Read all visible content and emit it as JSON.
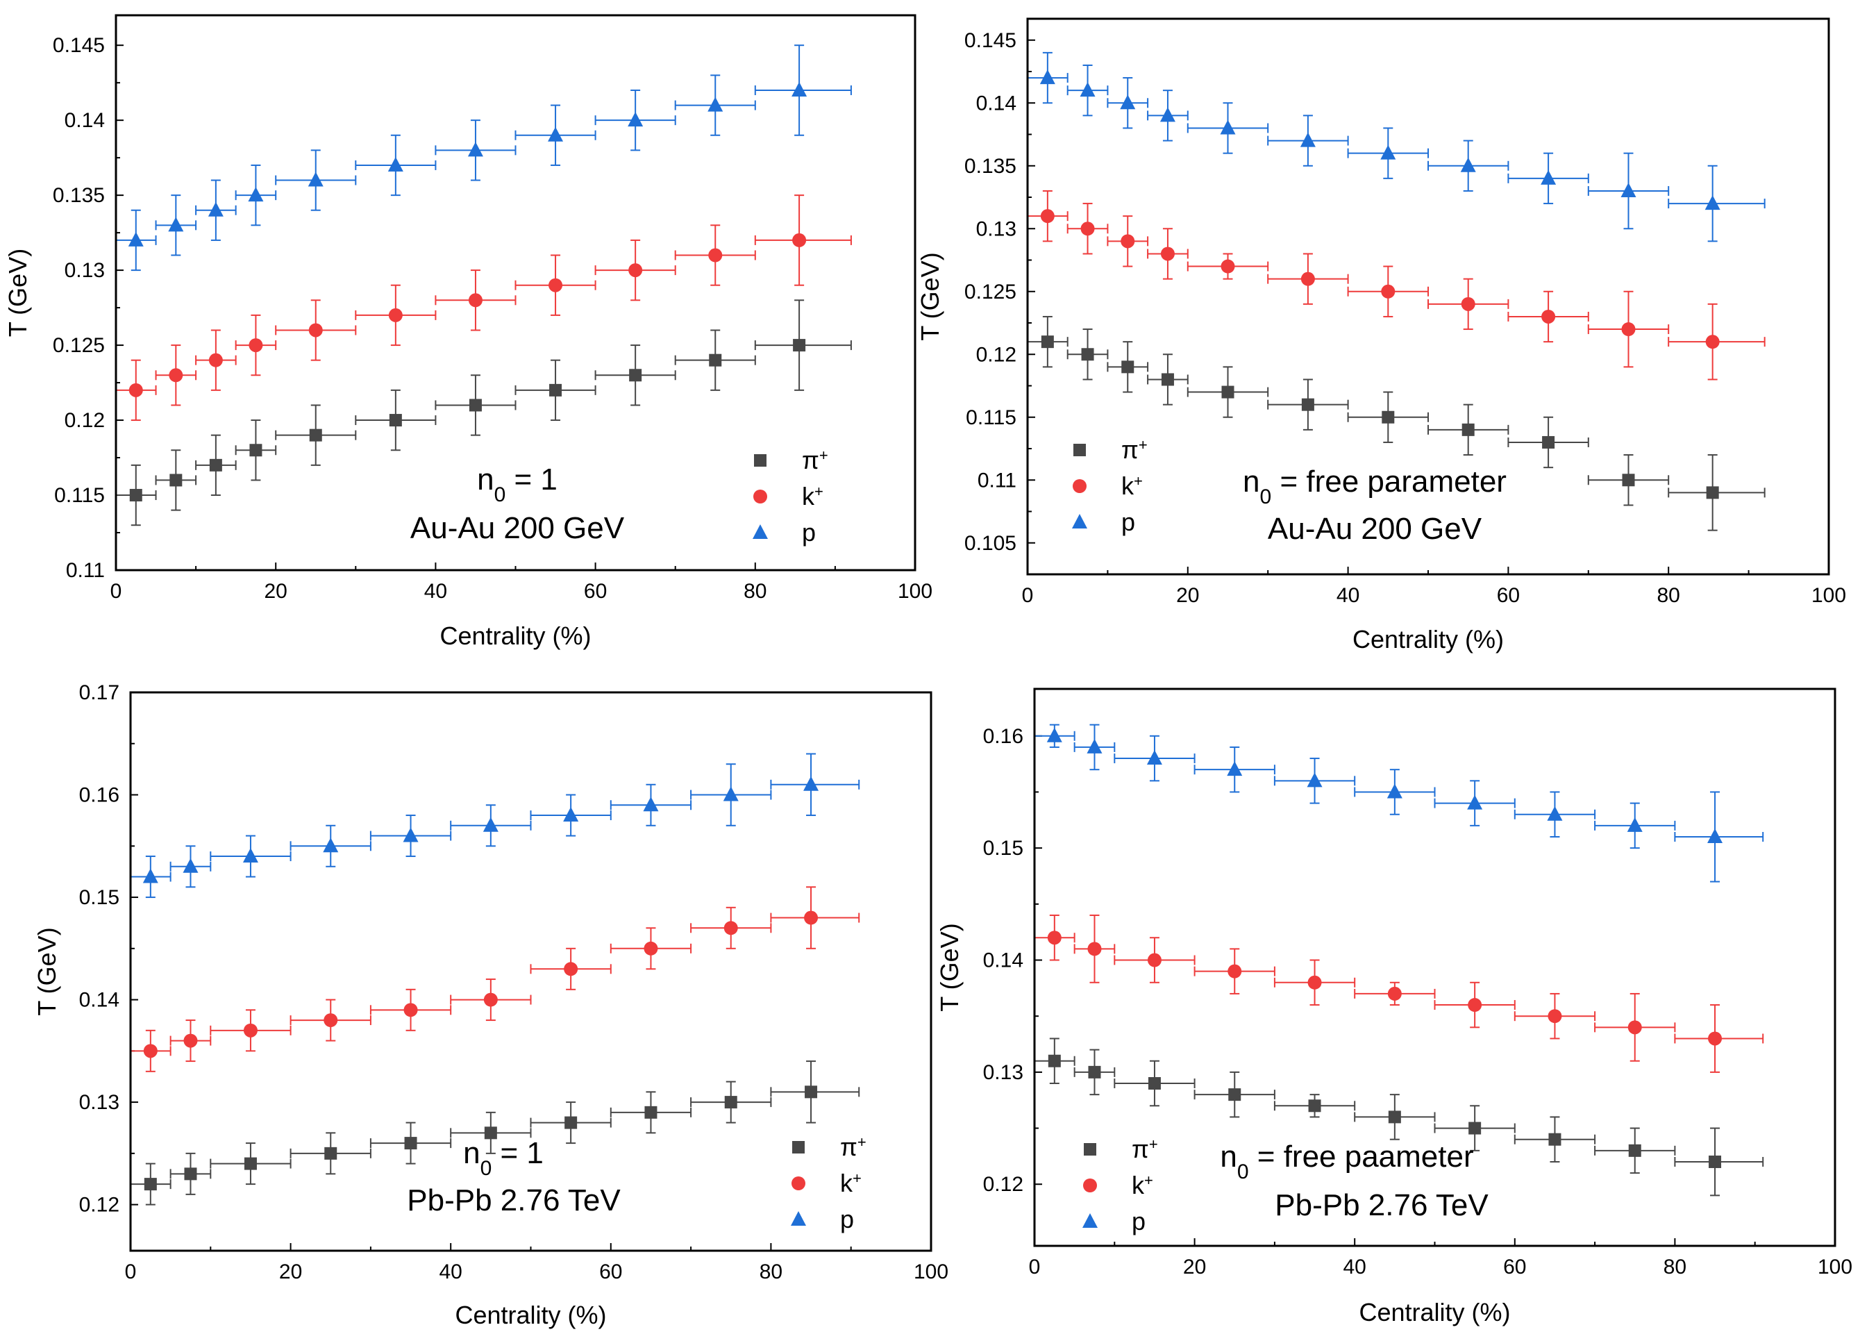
{
  "colors": {
    "pi": "#474747",
    "k": "#ee3b3b",
    "p": "#1f6fd6",
    "frame": "#000000"
  },
  "chart_data": [
    {
      "type": "scatter",
      "xlabel": "Centrality (%)",
      "ylabel": "T (GeV)",
      "xlim": [
        0,
        100
      ],
      "ylim": [
        0.11,
        0.147
      ],
      "xticks": [
        0,
        20,
        40,
        60,
        80,
        100
      ],
      "yticks": [
        0.11,
        0.115,
        0.12,
        0.125,
        0.13,
        0.135,
        0.14,
        0.145
      ],
      "ytick_labels": [
        "0.11",
        "0.115",
        "0.12",
        "0.125",
        "0.13",
        "0.135",
        "0.14",
        "0.145"
      ],
      "annotation_main": "n",
      "annotation_sub": "0",
      "annotation_rest": " = 1",
      "annotation_system": "Au-Au 200 GeV",
      "legend_position": "bottom-right",
      "series": [
        {
          "name": "π",
          "sup": "+",
          "key": "pi",
          "marker": "square",
          "x": [
            2.5,
            7.5,
            12.5,
            17.5,
            25,
            35,
            45,
            55,
            65,
            75,
            85.5
          ],
          "xlo": [
            0,
            5,
            10,
            15,
            20,
            30,
            40,
            50,
            60,
            70,
            80
          ],
          "xhi": [
            5,
            10,
            15,
            20,
            30,
            40,
            50,
            60,
            70,
            80,
            92
          ],
          "y": [
            0.115,
            0.116,
            0.117,
            0.118,
            0.119,
            0.12,
            0.121,
            0.122,
            0.123,
            0.124,
            0.125
          ],
          "yerr": [
            0.002,
            0.002,
            0.002,
            0.002,
            0.002,
            0.002,
            0.002,
            0.002,
            0.002,
            0.002,
            0.003
          ]
        },
        {
          "name": "k",
          "sup": "+",
          "key": "k",
          "marker": "circle",
          "x": [
            2.5,
            7.5,
            12.5,
            17.5,
            25,
            35,
            45,
            55,
            65,
            75,
            85.5
          ],
          "xlo": [
            0,
            5,
            10,
            15,
            20,
            30,
            40,
            50,
            60,
            70,
            80
          ],
          "xhi": [
            5,
            10,
            15,
            20,
            30,
            40,
            50,
            60,
            70,
            80,
            92
          ],
          "y": [
            0.122,
            0.123,
            0.124,
            0.125,
            0.126,
            0.127,
            0.128,
            0.129,
            0.13,
            0.131,
            0.132
          ],
          "yerr": [
            0.002,
            0.002,
            0.002,
            0.002,
            0.002,
            0.002,
            0.002,
            0.002,
            0.002,
            0.002,
            0.003
          ]
        },
        {
          "name": "p",
          "sup": "",
          "key": "p",
          "marker": "triangle",
          "x": [
            2.5,
            7.5,
            12.5,
            17.5,
            25,
            35,
            45,
            55,
            65,
            75,
            85.5
          ],
          "xlo": [
            0,
            5,
            10,
            15,
            20,
            30,
            40,
            50,
            60,
            70,
            80
          ],
          "xhi": [
            5,
            10,
            15,
            20,
            30,
            40,
            50,
            60,
            70,
            80,
            92
          ],
          "y": [
            0.132,
            0.133,
            0.134,
            0.135,
            0.136,
            0.137,
            0.138,
            0.139,
            0.14,
            0.141,
            0.142
          ],
          "yerr": [
            0.002,
            0.002,
            0.002,
            0.002,
            0.002,
            0.002,
            0.002,
            0.002,
            0.002,
            0.002,
            0.003
          ]
        }
      ]
    },
    {
      "type": "scatter",
      "xlabel": "Centrality (%)",
      "ylabel": "T (GeV)",
      "xlim": [
        0,
        100
      ],
      "ylim": [
        0.1025,
        0.1467
      ],
      "xticks": [
        0,
        20,
        40,
        60,
        80,
        100
      ],
      "yticks": [
        0.105,
        0.11,
        0.115,
        0.12,
        0.125,
        0.13,
        0.135,
        0.14,
        0.145
      ],
      "ytick_labels": [
        "0.105",
        "0.11",
        "0.115",
        "0.12",
        "0.125",
        "0.13",
        "0.135",
        "0.14",
        "0.145"
      ],
      "annotation_main": "n",
      "annotation_sub": "0",
      "annotation_rest": " = free parameter",
      "annotation_system": "Au-Au 200 GeV",
      "legend_position": "bottom-left",
      "series": [
        {
          "name": "π",
          "sup": "+",
          "key": "pi",
          "marker": "square",
          "x": [
            2.5,
            7.5,
            12.5,
            17.5,
            25,
            35,
            45,
            55,
            65,
            75,
            85.5
          ],
          "xlo": [
            0,
            5,
            10,
            15,
            20,
            30,
            40,
            50,
            60,
            70,
            80
          ],
          "xhi": [
            5,
            10,
            15,
            20,
            30,
            40,
            50,
            60,
            70,
            80,
            92
          ],
          "y": [
            0.121,
            0.12,
            0.119,
            0.118,
            0.117,
            0.116,
            0.115,
            0.114,
            0.113,
            0.11,
            0.109
          ],
          "yerr": [
            0.002,
            0.002,
            0.002,
            0.002,
            0.002,
            0.002,
            0.002,
            0.002,
            0.002,
            0.002,
            0.003
          ]
        },
        {
          "name": "k",
          "sup": "+",
          "key": "k",
          "marker": "circle",
          "x": [
            2.5,
            7.5,
            12.5,
            17.5,
            25,
            35,
            45,
            55,
            65,
            75,
            85.5
          ],
          "xlo": [
            0,
            5,
            10,
            15,
            20,
            30,
            40,
            50,
            60,
            70,
            80
          ],
          "xhi": [
            5,
            10,
            15,
            20,
            30,
            40,
            50,
            60,
            70,
            80,
            92
          ],
          "y": [
            0.131,
            0.13,
            0.129,
            0.128,
            0.127,
            0.126,
            0.125,
            0.124,
            0.123,
            0.122,
            0.121
          ],
          "yerr": [
            0.002,
            0.002,
            0.002,
            0.002,
            0.001,
            0.002,
            0.002,
            0.002,
            0.002,
            0.003,
            0.003
          ]
        },
        {
          "name": "p",
          "sup": "",
          "key": "p",
          "marker": "triangle",
          "x": [
            2.5,
            7.5,
            12.5,
            17.5,
            25,
            35,
            45,
            55,
            65,
            75,
            85.5
          ],
          "xlo": [
            0,
            5,
            10,
            15,
            20,
            30,
            40,
            50,
            60,
            70,
            80
          ],
          "xhi": [
            5,
            10,
            15,
            20,
            30,
            40,
            50,
            60,
            70,
            80,
            92
          ],
          "y": [
            0.142,
            0.141,
            0.14,
            0.139,
            0.138,
            0.137,
            0.136,
            0.135,
            0.134,
            0.133,
            0.132
          ],
          "yerr": [
            0.002,
            0.002,
            0.002,
            0.002,
            0.002,
            0.002,
            0.002,
            0.002,
            0.002,
            0.003,
            0.003
          ]
        }
      ]
    },
    {
      "type": "scatter",
      "xlabel": "Centrality (%)",
      "ylabel": "T (GeV)",
      "xlim": [
        0,
        100
      ],
      "ylim": [
        0.1155,
        0.17
      ],
      "xticks": [
        0,
        20,
        40,
        60,
        80,
        100
      ],
      "yticks": [
        0.12,
        0.13,
        0.14,
        0.15,
        0.16,
        0.17
      ],
      "ytick_labels": [
        "0.12",
        "0.13",
        "0.14",
        "0.15",
        "0.16",
        "0.17"
      ],
      "annotation_main": "n",
      "annotation_sub": "0",
      "annotation_rest": " = 1",
      "annotation_system": "Pb-Pb 2.76 TeV",
      "legend_position": "bottom-right",
      "series": [
        {
          "name": "π",
          "sup": "+",
          "key": "pi",
          "marker": "square",
          "x": [
            2.5,
            7.5,
            15,
            25,
            35,
            45,
            55,
            65,
            75,
            85
          ],
          "xlo": [
            0,
            5,
            10,
            20,
            30,
            40,
            50,
            60,
            70,
            80
          ],
          "xhi": [
            5,
            10,
            20,
            30,
            40,
            50,
            60,
            70,
            80,
            91
          ],
          "y": [
            0.122,
            0.123,
            0.124,
            0.125,
            0.126,
            0.127,
            0.128,
            0.129,
            0.13,
            0.131
          ],
          "yerr": [
            0.002,
            0.002,
            0.002,
            0.002,
            0.002,
            0.002,
            0.002,
            0.002,
            0.002,
            0.003
          ]
        },
        {
          "name": "k",
          "sup": "+",
          "key": "k",
          "marker": "circle",
          "x": [
            2.5,
            7.5,
            15,
            25,
            35,
            45,
            55,
            65,
            75,
            85
          ],
          "xlo": [
            0,
            5,
            10,
            20,
            30,
            40,
            50,
            60,
            70,
            80
          ],
          "xhi": [
            5,
            10,
            20,
            30,
            40,
            50,
            60,
            70,
            80,
            91
          ],
          "y": [
            0.135,
            0.136,
            0.137,
            0.138,
            0.139,
            0.14,
            0.143,
            0.145,
            0.147,
            0.148
          ],
          "yerr": [
            0.002,
            0.002,
            0.002,
            0.002,
            0.002,
            0.002,
            0.002,
            0.002,
            0.002,
            0.003
          ]
        },
        {
          "name": "p",
          "sup": "",
          "key": "p",
          "marker": "triangle",
          "x": [
            2.5,
            7.5,
            15,
            25,
            35,
            45,
            55,
            65,
            75,
            85
          ],
          "xlo": [
            0,
            5,
            10,
            20,
            30,
            40,
            50,
            60,
            70,
            80
          ],
          "xhi": [
            5,
            10,
            20,
            30,
            40,
            50,
            60,
            70,
            80,
            91
          ],
          "y": [
            0.152,
            0.153,
            0.154,
            0.155,
            0.156,
            0.157,
            0.158,
            0.159,
            0.16,
            0.161
          ],
          "yerr": [
            0.002,
            0.002,
            0.002,
            0.002,
            0.002,
            0.002,
            0.002,
            0.002,
            0.003,
            0.003
          ]
        }
      ]
    },
    {
      "type": "scatter",
      "xlabel": "Centrality (%)",
      "ylabel": "T (GeV)",
      "xlim": [
        0,
        100
      ],
      "ylim": [
        0.1145,
        0.1642
      ],
      "xticks": [
        0,
        20,
        40,
        60,
        80,
        100
      ],
      "yticks": [
        0.12,
        0.13,
        0.14,
        0.15,
        0.16
      ],
      "ytick_labels": [
        "0.12",
        "0.13",
        "0.14",
        "0.15",
        "0.16"
      ],
      "annotation_main": "n",
      "annotation_sub": "0",
      "annotation_rest": " = free paameter",
      "annotation_system": "Pb-Pb 2.76 TeV",
      "legend_position": "bottom-left",
      "series": [
        {
          "name": "π",
          "sup": "+",
          "key": "pi",
          "marker": "square",
          "x": [
            2.5,
            7.5,
            15,
            25,
            35,
            45,
            55,
            65,
            75,
            85
          ],
          "xlo": [
            0,
            5,
            10,
            20,
            30,
            40,
            50,
            60,
            70,
            80
          ],
          "xhi": [
            5,
            10,
            20,
            30,
            40,
            50,
            60,
            70,
            80,
            91
          ],
          "y": [
            0.131,
            0.13,
            0.129,
            0.128,
            0.127,
            0.126,
            0.125,
            0.124,
            0.123,
            0.122
          ],
          "yerr": [
            0.002,
            0.002,
            0.002,
            0.002,
            0.001,
            0.002,
            0.002,
            0.002,
            0.002,
            0.003
          ]
        },
        {
          "name": "k",
          "sup": "+",
          "key": "k",
          "marker": "circle",
          "x": [
            2.5,
            7.5,
            15,
            25,
            35,
            45,
            55,
            65,
            75,
            85
          ],
          "xlo": [
            0,
            5,
            10,
            20,
            30,
            40,
            50,
            60,
            70,
            80
          ],
          "xhi": [
            5,
            10,
            20,
            30,
            40,
            50,
            60,
            70,
            80,
            91
          ],
          "y": [
            0.142,
            0.141,
            0.14,
            0.139,
            0.138,
            0.137,
            0.136,
            0.135,
            0.134,
            0.133
          ],
          "yerr": [
            0.002,
            0.003,
            0.002,
            0.002,
            0.002,
            0.001,
            0.002,
            0.002,
            0.003,
            0.003
          ]
        },
        {
          "name": "p",
          "sup": "",
          "key": "p",
          "marker": "triangle",
          "x": [
            2.5,
            7.5,
            15,
            25,
            35,
            45,
            55,
            65,
            75,
            85
          ],
          "xlo": [
            0,
            5,
            10,
            20,
            30,
            40,
            50,
            60,
            70,
            80
          ],
          "xhi": [
            5,
            10,
            20,
            30,
            40,
            50,
            60,
            70,
            80,
            91
          ],
          "y": [
            0.16,
            0.159,
            0.158,
            0.157,
            0.156,
            0.155,
            0.154,
            0.153,
            0.152,
            0.151
          ],
          "yerr": [
            0.001,
            0.002,
            0.002,
            0.002,
            0.002,
            0.002,
            0.002,
            0.002,
            0.002,
            0.004
          ]
        }
      ]
    }
  ]
}
